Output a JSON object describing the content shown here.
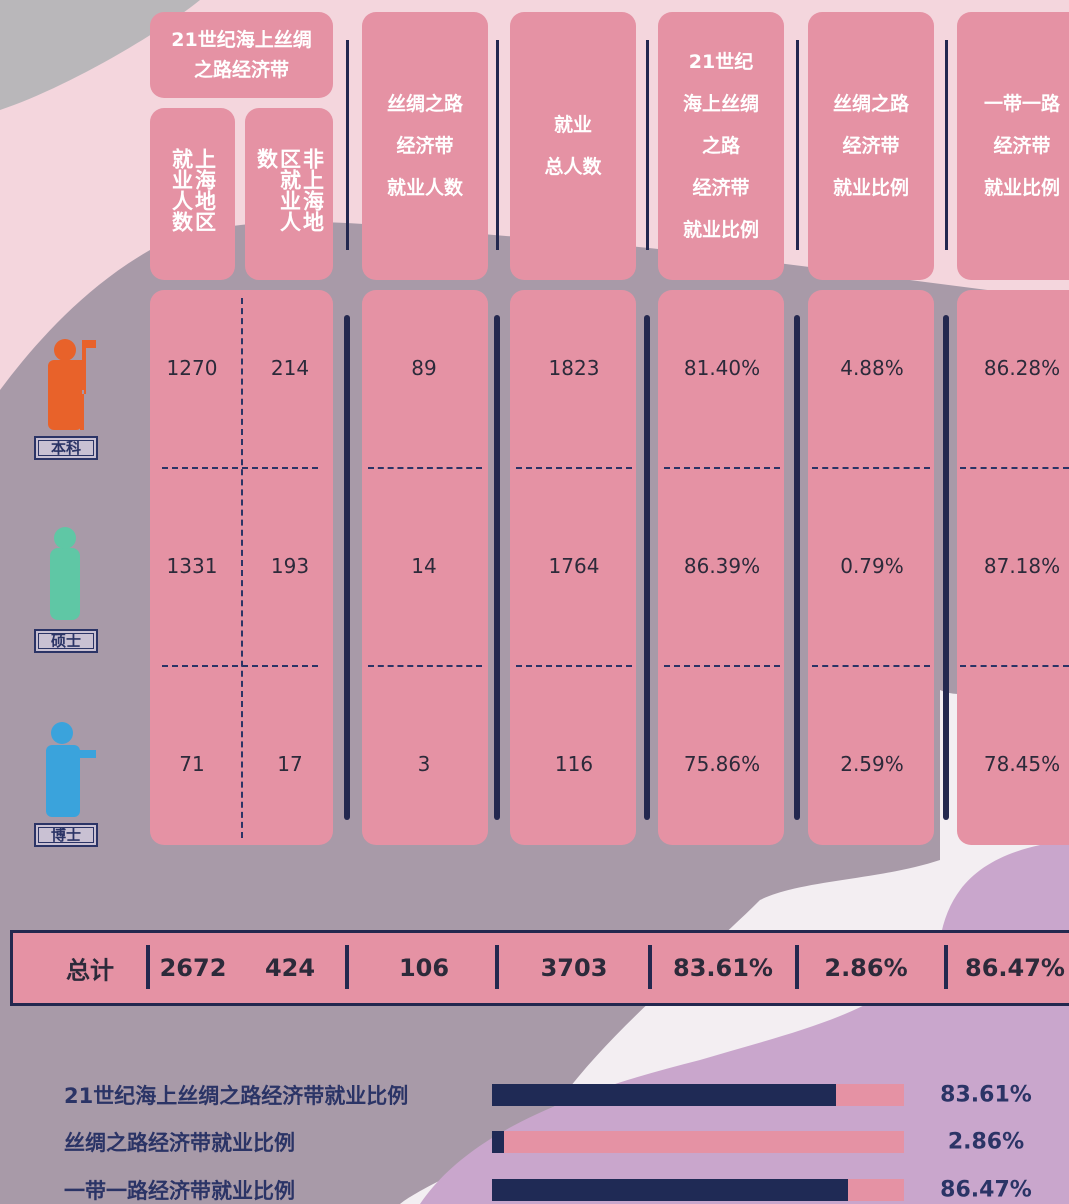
{
  "table": {
    "group_header": [
      "21世纪海上丝绸",
      "之路经济带"
    ],
    "sub_headers": [
      "上海地区就业人数",
      "非上海地区就业人数"
    ],
    "headers": [
      [
        "丝绸之路",
        "经济带",
        "就业人数"
      ],
      [
        "就业",
        "总人数"
      ],
      [
        "21世纪",
        "海上丝绸",
        "之路",
        "经济带",
        "就业比例"
      ],
      [
        "丝绸之路",
        "经济带",
        "就业比例"
      ],
      [
        "一带一路",
        "经济带",
        "就业比例"
      ]
    ],
    "rows": [
      {
        "label": "本科",
        "cells": [
          "1270",
          "214",
          "89",
          "1823",
          "81.40%",
          "4.88%",
          "86.28%"
        ]
      },
      {
        "label": "硕士",
        "cells": [
          "1331",
          "193",
          "14",
          "1764",
          "86.39%",
          "0.79%",
          "87.18%"
        ]
      },
      {
        "label": "博士",
        "cells": [
          "71",
          "17",
          "3",
          "116",
          "75.86%",
          "2.59%",
          "78.45%"
        ]
      }
    ],
    "total": {
      "label": "总计",
      "cells": [
        "2672",
        "424",
        "106",
        "3703",
        "83.61%",
        "2.86%",
        "86.47%"
      ]
    }
  },
  "chart_data": {
    "type": "bar",
    "orientation": "horizontal",
    "categories": [
      "21世纪海上丝绸之路经济带就业比例",
      "丝绸之路经济带就业比例",
      "一带一路经济带就业比例"
    ],
    "values": [
      83.61,
      2.86,
      86.47
    ],
    "value_labels": [
      "83.61%",
      "2.86%",
      "86.47%"
    ],
    "xlim": [
      0,
      100
    ],
    "color": "#1f2a55",
    "track_color": "#e592a4"
  }
}
